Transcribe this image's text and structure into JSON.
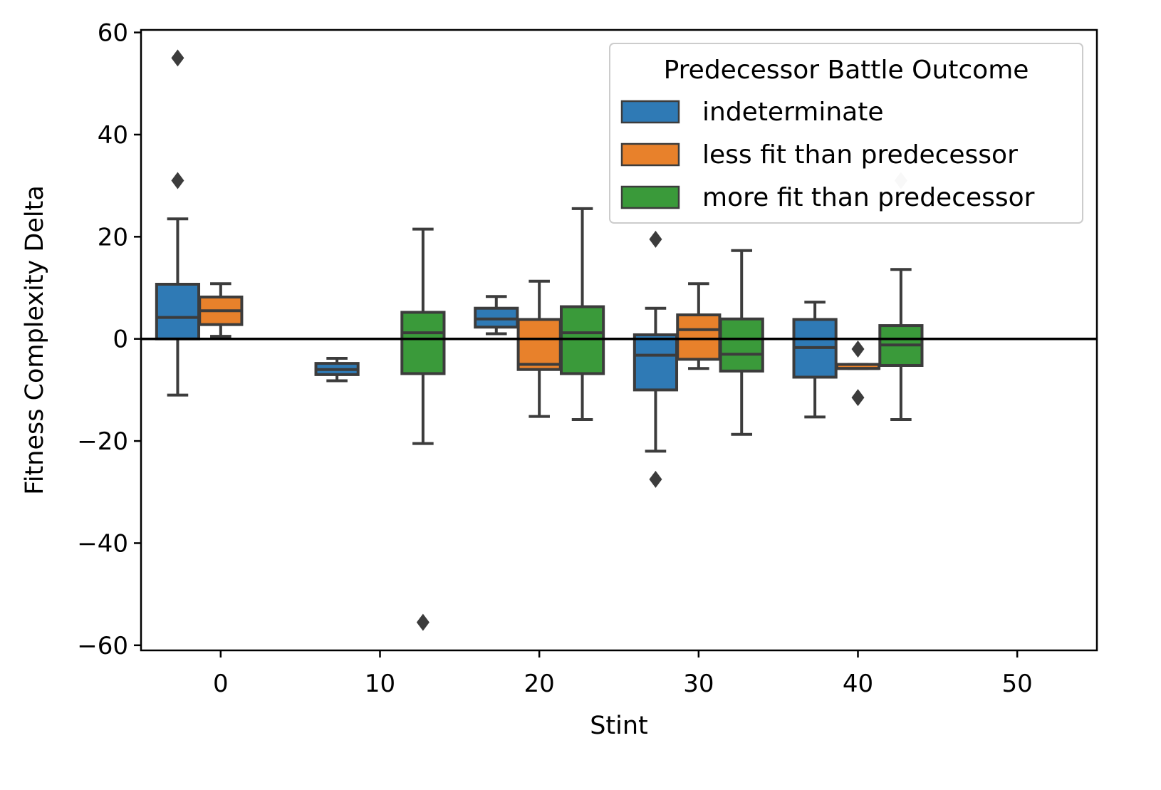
{
  "chart_data": {
    "type": "box",
    "title": "",
    "xlabel": "Stint",
    "ylabel": "Fitness Complexity Delta",
    "xlim": [
      -5,
      55
    ],
    "ylim": [
      -61,
      60.5
    ],
    "x_ticks": [
      0,
      10,
      20,
      30,
      40,
      50
    ],
    "y_ticks": [
      60,
      40,
      20,
      0,
      -20,
      -40,
      -60
    ],
    "x_tick_labels": [
      "0",
      "10",
      "20",
      "30",
      "40",
      "50"
    ],
    "y_tick_labels": [
      "60",
      "40",
      "20",
      "0",
      "−20",
      "−40",
      "−60"
    ],
    "reference_line_y": 0,
    "legend": {
      "title": "Predecessor Battle Outcome",
      "placement": "upper right",
      "entries": [
        {
          "label": "indeterminate",
          "color": "#2f7ab5"
        },
        {
          "label": "less fit than predecessor",
          "color": "#e8812b"
        },
        {
          "label": "more fit than predecessor",
          "color": "#3a9a3a"
        }
      ]
    },
    "series": [
      {
        "name": "indeterminate",
        "color": "#2f7ab5",
        "boxes": [
          {
            "x": -2.7,
            "whisker_low": -11,
            "q1": 0,
            "median": 4.2,
            "q3": 10.7,
            "whisker_high": 23.5,
            "outliers": [
              55,
              31
            ]
          },
          {
            "x": 7.3,
            "whisker_low": -8.2,
            "q1": -7,
            "median": -6,
            "q3": -4.8,
            "whisker_high": -3.8,
            "outliers": []
          },
          {
            "x": 17.3,
            "whisker_low": 1,
            "q1": 2.3,
            "median": 3.9,
            "q3": 6,
            "whisker_high": 8.3,
            "outliers": []
          },
          {
            "x": 27.3,
            "whisker_low": -22,
            "q1": -10,
            "median": -3.2,
            "q3": 0.8,
            "whisker_high": 6,
            "outliers": [
              19.5,
              -27.5
            ]
          },
          {
            "x": 37.3,
            "whisker_low": -15.3,
            "q1": -7.5,
            "median": -1.7,
            "q3": 3.8,
            "whisker_high": 7.2,
            "outliers": []
          }
        ]
      },
      {
        "name": "less fit than predecessor",
        "color": "#e8812b",
        "boxes": [
          {
            "x": 0,
            "whisker_low": 0.5,
            "q1": 2.8,
            "median": 5.5,
            "q3": 8.2,
            "whisker_high": 10.8,
            "outliers": []
          },
          {
            "x": 20,
            "whisker_low": -15.2,
            "q1": -6,
            "median": -5,
            "q3": 3.8,
            "whisker_high": 11.3,
            "outliers": []
          },
          {
            "x": 30,
            "whisker_low": -5.8,
            "q1": -4,
            "median": 1.8,
            "q3": 4.7,
            "whisker_high": 10.8,
            "outliers": []
          },
          {
            "x": 40,
            "whisker_low": -5.8,
            "q1": -5.8,
            "median": -5.8,
            "q3": -5,
            "whisker_high": -5,
            "outliers": [
              -2,
              -11.5
            ]
          }
        ]
      },
      {
        "name": "more fit than predecessor",
        "color": "#3a9a3a",
        "boxes": [
          {
            "x": 12.7,
            "whisker_low": -20.5,
            "q1": -6.8,
            "median": 1.2,
            "q3": 5.2,
            "whisker_high": 21.5,
            "outliers": [
              -55.5
            ]
          },
          {
            "x": 22.7,
            "whisker_low": -15.8,
            "q1": -6.8,
            "median": 1.2,
            "q3": 6.3,
            "whisker_high": 25.5,
            "outliers": []
          },
          {
            "x": 32.7,
            "whisker_low": -18.7,
            "q1": -6.3,
            "median": -3,
            "q3": 3.9,
            "whisker_high": 17.3,
            "outliers": []
          },
          {
            "x": 42.7,
            "whisker_low": -15.8,
            "q1": -5.2,
            "median": -1.2,
            "q3": 2.6,
            "whisker_high": 13.6,
            "outliers": [
              31
            ]
          }
        ]
      }
    ]
  }
}
